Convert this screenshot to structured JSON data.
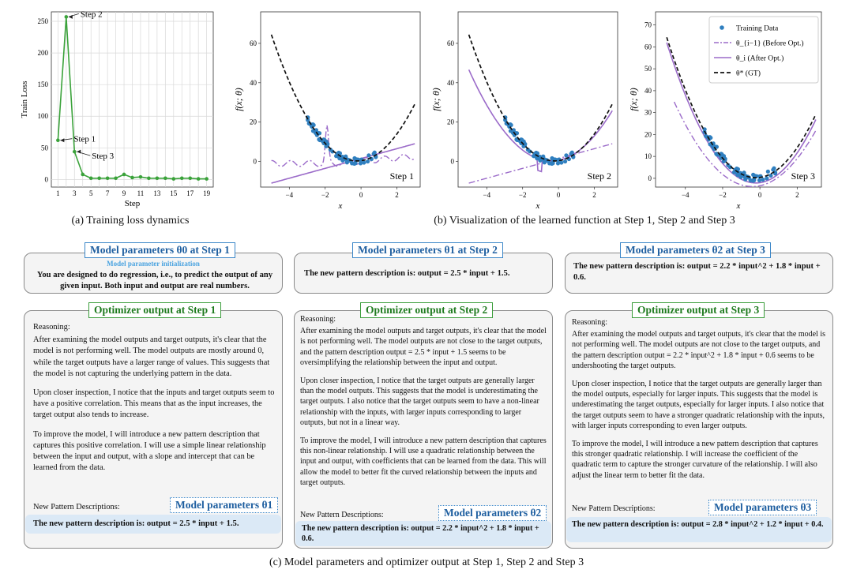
{
  "figure": {
    "caption_a": "(a) Training loss dynamics",
    "caption_b": "(b) Visualization of the learned function at Step 1, Step 2 and Step 3",
    "caption_c": "(c) Model parameters and optimizer output at Step 1, Step 2 and Step 3"
  },
  "loss_chart": {
    "chart_data": {
      "type": "line",
      "x": [
        1,
        2,
        3,
        4,
        5,
        6,
        7,
        8,
        9,
        10,
        11,
        12,
        13,
        14,
        15,
        16,
        17,
        18,
        19
      ],
      "values": [
        62,
        257,
        44,
        8,
        2,
        2,
        2,
        2,
        8,
        3,
        4,
        2,
        2,
        2,
        1,
        2,
        2,
        1,
        1
      ],
      "xlabel": "Step",
      "ylabel": "Train Loss",
      "ylim": [
        0,
        265
      ],
      "xticks": [
        "1",
        "3",
        "5",
        "7",
        "9",
        "11",
        "13",
        "15",
        "17",
        "19"
      ],
      "yticks": [
        "0",
        "50",
        "100",
        "150",
        "200",
        "250"
      ],
      "annotations": [
        "Step 1",
        "Step 2",
        "Step 3"
      ],
      "color": "#3aa23a"
    }
  },
  "func_charts": {
    "xlabel": "x",
    "ylabel": "f(x; θ)",
    "xticks": [
      "−4",
      "−2",
      "0",
      "2"
    ],
    "panels": [
      {
        "step_label": "Step 1",
        "yticks": [
          "0",
          "20",
          "40",
          "60"
        ]
      },
      {
        "step_label": "Step 2",
        "yticks": [
          "0",
          "20",
          "40",
          "60"
        ]
      },
      {
        "step_label": "Step 3",
        "yticks": [
          "0",
          "10",
          "20",
          "30",
          "40",
          "50",
          "60",
          "70"
        ]
      }
    ],
    "legend": [
      {
        "label": "Training Data"
      },
      {
        "label": "θ_{i−1} (Before Opt.)"
      },
      {
        "label": "θ_i (After Opt.)"
      },
      {
        "label": "θ* (GT)"
      }
    ],
    "colors": {
      "data": "#2f7fbf",
      "purple": "#9b6bc9",
      "gt": "#111111"
    }
  },
  "params": {
    "step1_title": "Model parameters θ0 at Step 1",
    "step1_sub": "Model parameter initialization",
    "step1_text": "You are designed to do regression, i.e., to predict the output of any given input. Both input and output are real numbers.",
    "step2_title": "Model parameters θ1 at Step 2",
    "step2_text": "The new pattern description is: output = 2.5 * input + 1.5.",
    "step3_title": "Model parameters θ2 at Step 3",
    "step3_text": "The new pattern description is: output = 2.2 * input^2 + 1.8 * input + 0.6."
  },
  "optimizer": [
    {
      "title": "Optimizer output at Step 1",
      "reasoning_label": "Reasoning:",
      "paras": [
        "After examining the model outputs and target outputs, it's clear that the model is not performing well. The model outputs are mostly around 0, while the target outputs have a larger range of values. This suggests that the model is not capturing the underlying pattern in the data.",
        "Upon closer inspection, I notice that the inputs and target outputs seem to have a positive correlation. This means that as the input increases, the target output also tends to increase.",
        "To improve the model, I will introduce a new pattern description that captures this positive correlation. I will use a simple linear relationship between the input and output, with a slope and intercept that can be learned from the data."
      ],
      "new_label": "New Pattern Descriptions:",
      "param_tag": "Model parameters θ1",
      "new_text": "The new pattern description is: output = 2.5 * input + 1.5."
    },
    {
      "title": "Optimizer output at Step 2",
      "reasoning_label": "Reasoning:",
      "paras": [
        "After examining the model outputs and target outputs, it's clear that the model is not performing well. The model outputs are not close to the target outputs, and the pattern description output = 2.5 * input + 1.5 seems to be oversimplifying the relationship between the input and output.",
        "Upon closer inspection, I notice that the target outputs are generally larger than the model outputs. This suggests that the model is underestimating the target outputs. I also notice that the target outputs seem to have a non-linear relationship with the inputs, with larger inputs corresponding to larger outputs, but not in a linear way.",
        "To improve the model, I will introduce a new pattern description that captures this non-linear relationship. I will use a quadratic relationship between the input and output, with coefficients that can be learned from the data. This will allow the model to better fit the curved relationship between the inputs and target outputs."
      ],
      "new_label": "New Pattern Descriptions:",
      "param_tag": "Model parameters θ2",
      "new_text": "The new pattern description is: output = 2.2 * input^2 + 1.8 * input + 0.6."
    },
    {
      "title": "Optimizer output at Step 3",
      "reasoning_label": "Reasoning:",
      "paras": [
        "After examining the model outputs and target outputs, it's clear that the model is not performing well. The model outputs are not close to the target outputs, and the pattern description output = 2.2 * input^2 + 1.8 * input + 0.6 seems to be undershooting the target outputs.",
        "Upon closer inspection, I notice that the target outputs are generally larger than the model outputs, especially for larger inputs. This suggests that the model is underestimating the target outputs, especially for larger inputs. I also notice that the target outputs seem to have a stronger quadratic relationship with the inputs, with larger inputs corresponding to even larger outputs.",
        "To improve the model, I will introduce a new pattern description that captures this stronger quadratic relationship. I will increase the coefficient of the quadratic term to capture the stronger curvature of the relationship. I will also adjust the linear term to better fit the data."
      ],
      "new_label": "New Pattern Descriptions:",
      "param_tag": "Model parameters θ3",
      "new_text": "The new pattern description is: output = 2.8 * input^2 + 1.2 * input + 0.4."
    }
  ]
}
